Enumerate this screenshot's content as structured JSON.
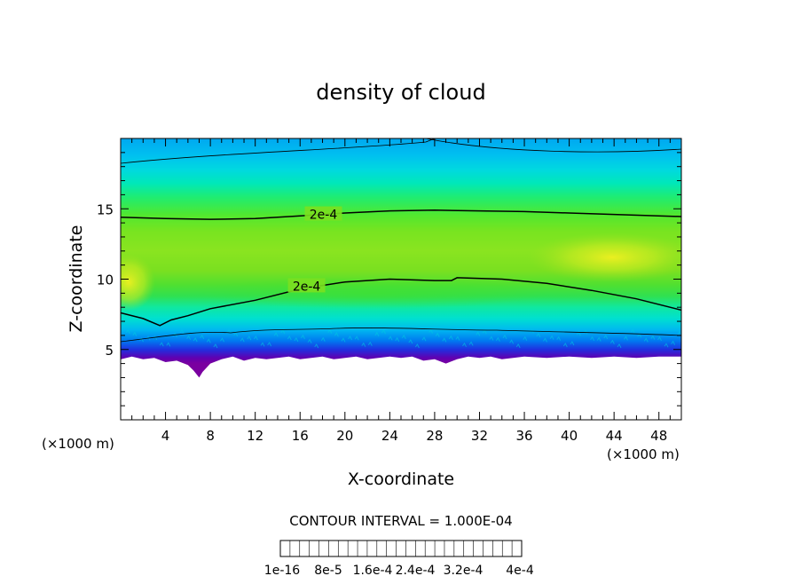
{
  "chart_data": {
    "type": "heatmap",
    "title": "density of cloud",
    "xlabel": "X-coordinate",
    "ylabel": "Z-coordinate",
    "x_unit_label": "(×1000 m)",
    "y_unit_label": "(×1000 m)",
    "xlim": [
      0,
      50
    ],
    "ylim": [
      0,
      20
    ],
    "x_ticks": [
      "4",
      "8",
      "12",
      "16",
      "20",
      "24",
      "28",
      "32",
      "36",
      "40",
      "44",
      "48"
    ],
    "y_ticks": [
      "5",
      "10",
      "15"
    ],
    "contour_interval_label": "CONTOUR INTERVAL = 1.000E-04",
    "contour_labels": [
      {
        "text": "2e-4",
        "x": 18,
        "z": 14.6
      },
      {
        "text": "2e-4",
        "x": 16.5,
        "z": 9.5
      }
    ],
    "contours_2e4": [
      {
        "x": [
          0,
          4,
          8,
          12,
          16,
          20,
          24,
          28,
          32,
          36,
          40,
          44,
          48,
          50
        ],
        "z": [
          14.4,
          14.3,
          14.25,
          14.3,
          14.5,
          14.7,
          14.85,
          14.9,
          14.85,
          14.8,
          14.7,
          14.6,
          14.5,
          14.45
        ]
      },
      {
        "x": [
          0,
          2,
          3.5,
          4.5,
          6,
          8,
          12,
          16,
          20,
          24,
          28,
          29.5,
          30,
          34,
          38,
          42,
          46,
          50
        ],
        "z": [
          7.6,
          7.2,
          6.7,
          7.1,
          7.4,
          7.9,
          8.5,
          9.3,
          9.8,
          10,
          9.9,
          9.9,
          10.1,
          10.0,
          9.7,
          9.2,
          8.6,
          7.8
        ]
      }
    ],
    "cloud_base": {
      "x": [
        0,
        1,
        2,
        3,
        4,
        5,
        6,
        6.5,
        7,
        7.3,
        8,
        9,
        10,
        11,
        12,
        13,
        14,
        15,
        16,
        17,
        18,
        19,
        20,
        21,
        22,
        23,
        24,
        25,
        26,
        27,
        28,
        29,
        30,
        31,
        32,
        33,
        34,
        35,
        36,
        38,
        40,
        42,
        44,
        46,
        48,
        50
      ],
      "z": [
        4.3,
        4.5,
        4.3,
        4.4,
        4.1,
        4.2,
        3.9,
        3.5,
        3.0,
        3.4,
        4.0,
        4.3,
        4.5,
        4.2,
        4.4,
        4.3,
        4.4,
        4.5,
        4.3,
        4.4,
        4.5,
        4.3,
        4.4,
        4.5,
        4.3,
        4.4,
        4.5,
        4.4,
        4.5,
        4.2,
        4.3,
        4.0,
        4.3,
        4.5,
        4.4,
        4.5,
        4.3,
        4.4,
        4.5,
        4.4,
        4.5,
        4.4,
        4.5,
        4.4,
        4.5,
        4.5
      ]
    },
    "colorbar": {
      "colors": [
        "#7a00a0",
        "#5a00b0",
        "#3a00c8",
        "#2020e0",
        "#0040f0",
        "#0068f5",
        "#0090f5",
        "#00b4f0",
        "#00d4e0",
        "#00e8c0",
        "#00f0a0",
        "#10f070",
        "#30ec40",
        "#50e820",
        "#78e010",
        "#a0e010",
        "#c8e800",
        "#e8f000",
        "#f8d800",
        "#f8b000",
        "#f88800",
        "#f86000",
        "#f04830",
        "#f06868",
        "#f89898"
      ],
      "labels": [
        "1e-16",
        "8e-5",
        "1.6e-4",
        "2.4e-4",
        "3.2e-4",
        "4e-4"
      ]
    }
  }
}
